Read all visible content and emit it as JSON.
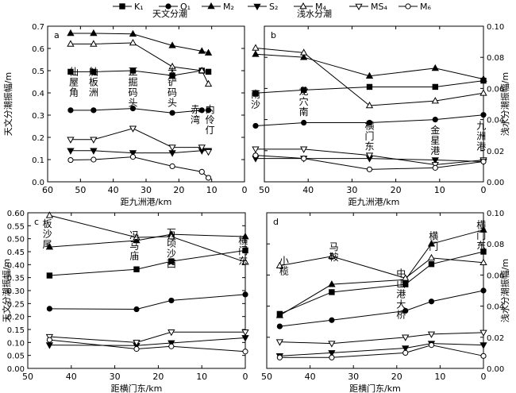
{
  "legend": {
    "entries": [
      {
        "label": "K₁",
        "marker": "square-filled"
      },
      {
        "label": "O₁",
        "marker": "circle-filled"
      },
      {
        "label": "M₂",
        "marker": "triangle-up-filled"
      },
      {
        "label": "S₂",
        "marker": "triangle-down-filled"
      },
      {
        "label": "M₄",
        "marker": "triangle-up-open"
      },
      {
        "label": "MS₄",
        "marker": "triangle-down-open"
      },
      {
        "label": "M₆",
        "marker": "circle-open"
      }
    ],
    "group_left": "天文分潮",
    "group_right": "浅水分潮"
  },
  "chart_data": [
    {
      "panel": "a",
      "type": "line",
      "xlabel": "距九洲港/km",
      "ylabel": "天文分潮振幅/m",
      "xlim": [
        60,
        0
      ],
      "ylim": [
        0.0,
        0.7
      ],
      "xticks": [
        60,
        50,
        40,
        30,
        20,
        10,
        0
      ],
      "yticks": [
        0.0,
        0.1,
        0.2,
        0.3,
        0.4,
        0.5,
        0.6,
        0.7
      ],
      "ytick_labels": [
        "0.0",
        "0.1",
        "0.2",
        "0.3",
        "0.4",
        "0.5",
        "0.6",
        "0.7"
      ],
      "axis_side": "left",
      "x": [
        53,
        46,
        34,
        22,
        13,
        11
      ],
      "series": [
        {
          "marker": "square-filled",
          "values": [
            0.495,
            0.495,
            0.5,
            0.478,
            0.5,
            0.495
          ]
        },
        {
          "marker": "circle-filled",
          "values": [
            0.322,
            0.322,
            0.33,
            0.31,
            0.322,
            0.322
          ]
        },
        {
          "marker": "triangle-up-filled",
          "values": [
            0.668,
            0.668,
            0.665,
            0.613,
            0.588,
            0.58
          ]
        },
        {
          "marker": "triangle-down-filled",
          "values": [
            0.14,
            0.14,
            0.13,
            0.13,
            0.14,
            0.14
          ]
        },
        {
          "marker": "triangle-up-open",
          "values": [
            0.62,
            0.62,
            0.625,
            0.518,
            0.5,
            0.44
          ]
        },
        {
          "marker": "triangle-down-open",
          "values": [
            0.19,
            0.19,
            0.24,
            0.155,
            0.155,
            0.135
          ]
        },
        {
          "marker": "circle-open",
          "values": [
            0.098,
            0.1,
            0.112,
            0.07,
            0.045,
            0.018
          ]
        }
      ],
      "annotations": [
        {
          "text": "仙屋角",
          "x": 52,
          "y": 0.48
        },
        {
          "text": "舢板洲",
          "x": 46,
          "y": 0.48
        },
        {
          "text": "正掘码头",
          "x": 34,
          "y": 0.48
        },
        {
          "text": "大铲码头",
          "x": 22,
          "y": 0.48
        },
        {
          "text": "赤湾",
          "x": 15,
          "y": 0.31
        },
        {
          "text": "内伶仃",
          "x": 10.5,
          "y": 0.31
        }
      ]
    },
    {
      "panel": "b",
      "type": "line",
      "xlabel": "距九洲港/km",
      "ylabel": "浅水分潮振幅/m",
      "xlim": [
        50,
        0
      ],
      "ylim": [
        0.0,
        0.1
      ],
      "xticks": [
        50,
        40,
        30,
        20,
        10,
        0
      ],
      "yticks": [
        0.0,
        0.02,
        0.04,
        0.06,
        0.08,
        0.1
      ],
      "ytick_labels": [
        "0.00",
        "0.02",
        "0.04",
        "0.06",
        "0.08",
        "0.10"
      ],
      "axis_side": "right",
      "x": [
        52,
        41,
        26,
        11,
        0
      ],
      "series": [
        {
          "marker": "square-filled",
          "values": [
            0.057,
            0.059,
            0.061,
            0.061,
            0.065
          ]
        },
        {
          "marker": "circle-filled",
          "values": [
            0.036,
            0.038,
            0.038,
            0.04,
            0.043
          ]
        },
        {
          "marker": "triangle-up-filled",
          "values": [
            0.082,
            0.08,
            0.068,
            0.073,
            0.066
          ]
        },
        {
          "marker": "triangle-down-filled",
          "values": [
            0.015,
            0.015,
            0.015,
            0.014,
            0.013
          ]
        },
        {
          "marker": "triangle-up-open",
          "values": [
            0.086,
            0.083,
            0.049,
            0.052,
            0.057
          ]
        },
        {
          "marker": "triangle-down-open",
          "values": [
            0.021,
            0.021,
            0.017,
            0.011,
            0.014
          ]
        },
        {
          "marker": "circle-open",
          "values": [
            0.017,
            0.015,
            0.008,
            0.009,
            0.013
          ]
        }
      ],
      "annotations": [
        {
          "text": "南沙",
          "x": 52,
          "y": 0.054
        },
        {
          "text": "龙穴南",
          "x": 41,
          "y": 0.056
        },
        {
          "text": "横门东",
          "x": 26,
          "y": 0.034
        },
        {
          "text": "金星港",
          "x": 11,
          "y": 0.031
        },
        {
          "text": "九洲港",
          "x": 0.5,
          "y": 0.034
        }
      ]
    },
    {
      "panel": "c",
      "type": "line",
      "xlabel": "距横门东/km",
      "ylabel": "天文分潮振幅/m",
      "xlim": [
        50,
        0
      ],
      "ylim": [
        0.0,
        0.6
      ],
      "xticks": [
        50,
        40,
        30,
        20,
        10,
        0
      ],
      "yticks": [
        0.0,
        0.05,
        0.1,
        0.15,
        0.2,
        0.25,
        0.3,
        0.35,
        0.4,
        0.45,
        0.5,
        0.55,
        0.6
      ],
      "ytick_labels": [
        "0.00",
        "0.05",
        "0.10",
        "0.15",
        "0.20",
        "0.25",
        "0.30",
        "0.35",
        "0.40",
        "0.45",
        "0.50",
        "0.55",
        "0.60"
      ],
      "axis_side": "left",
      "x": [
        45,
        25,
        17,
        0
      ],
      "series": [
        {
          "marker": "square-filled",
          "values": [
            0.358,
            0.382,
            0.413,
            0.455
          ]
        },
        {
          "marker": "circle-filled",
          "values": [
            0.23,
            0.228,
            0.262,
            0.285
          ]
        },
        {
          "marker": "triangle-up-filled",
          "values": [
            0.468,
            0.493,
            0.517,
            0.508
          ]
        },
        {
          "marker": "triangle-down-filled",
          "values": [
            0.09,
            0.088,
            0.098,
            0.118
          ]
        },
        {
          "marker": "triangle-up-open",
          "values": [
            0.59,
            0.505,
            0.508,
            0.41
          ]
        },
        {
          "marker": "triangle-down-open",
          "values": [
            0.122,
            0.1,
            0.14,
            0.14
          ]
        },
        {
          "marker": "circle-open",
          "values": [
            0.11,
            0.075,
            0.085,
            0.065
          ]
        }
      ],
      "annotations": [
        {
          "text": "板沙尾",
          "x": 45.5,
          "y": 0.545
        },
        {
          "text": "冯马庙",
          "x": 25.5,
          "y": 0.5
        },
        {
          "text": "万顷沙西",
          "x": 17,
          "y": 0.51
        },
        {
          "text": "横门东",
          "x": 0.5,
          "y": 0.48
        }
      ]
    },
    {
      "panel": "d",
      "type": "line",
      "xlabel": "距横门东/km",
      "ylabel": "浅水分潮振幅/m",
      "xlim": [
        50,
        0
      ],
      "ylim": [
        0.0,
        0.1
      ],
      "xticks": [
        50,
        40,
        30,
        20,
        10,
        0
      ],
      "yticks": [
        0.0,
        0.02,
        0.04,
        0.06,
        0.08,
        0.1
      ],
      "ytick_labels": [
        "0.00",
        "0.02",
        "0.04",
        "0.06",
        "0.08",
        "0.10"
      ],
      "axis_side": "right",
      "x": [
        47,
        35,
        18,
        12,
        0
      ],
      "series": [
        {
          "marker": "square-filled",
          "values": [
            0.035,
            0.049,
            0.054,
            0.067,
            0.075
          ]
        },
        {
          "marker": "circle-filled",
          "values": [
            0.027,
            0.031,
            0.037,
            0.043,
            0.05
          ]
        },
        {
          "marker": "triangle-up-filled",
          "values": [
            0.034,
            0.054,
            0.057,
            0.08,
            0.089
          ]
        },
        {
          "marker": "triangle-down-filled",
          "values": [
            0.008,
            0.01,
            0.013,
            0.016,
            0.015
          ]
        },
        {
          "marker": "triangle-up-open",
          "values": [
            0.066,
            0.072,
            0.058,
            0.071,
            0.068
          ]
        },
        {
          "marker": "triangle-down-open",
          "values": [
            0.017,
            0.016,
            0.02,
            0.022,
            0.023
          ]
        },
        {
          "marker": "circle-open",
          "values": [
            0.007,
            0.007,
            0.01,
            0.015,
            0.008
          ]
        }
      ],
      "annotations": [
        {
          "text": "小榄",
          "x": 46,
          "y": 0.067
        },
        {
          "text": "马鞍",
          "x": 34.5,
          "y": 0.076
        },
        {
          "text": "中山港大桥",
          "x": 19,
          "y": 0.059
        },
        {
          "text": "横门",
          "x": 11.5,
          "y": 0.083
        },
        {
          "text": "横门东",
          "x": 0.5,
          "y": 0.09
        }
      ]
    }
  ]
}
